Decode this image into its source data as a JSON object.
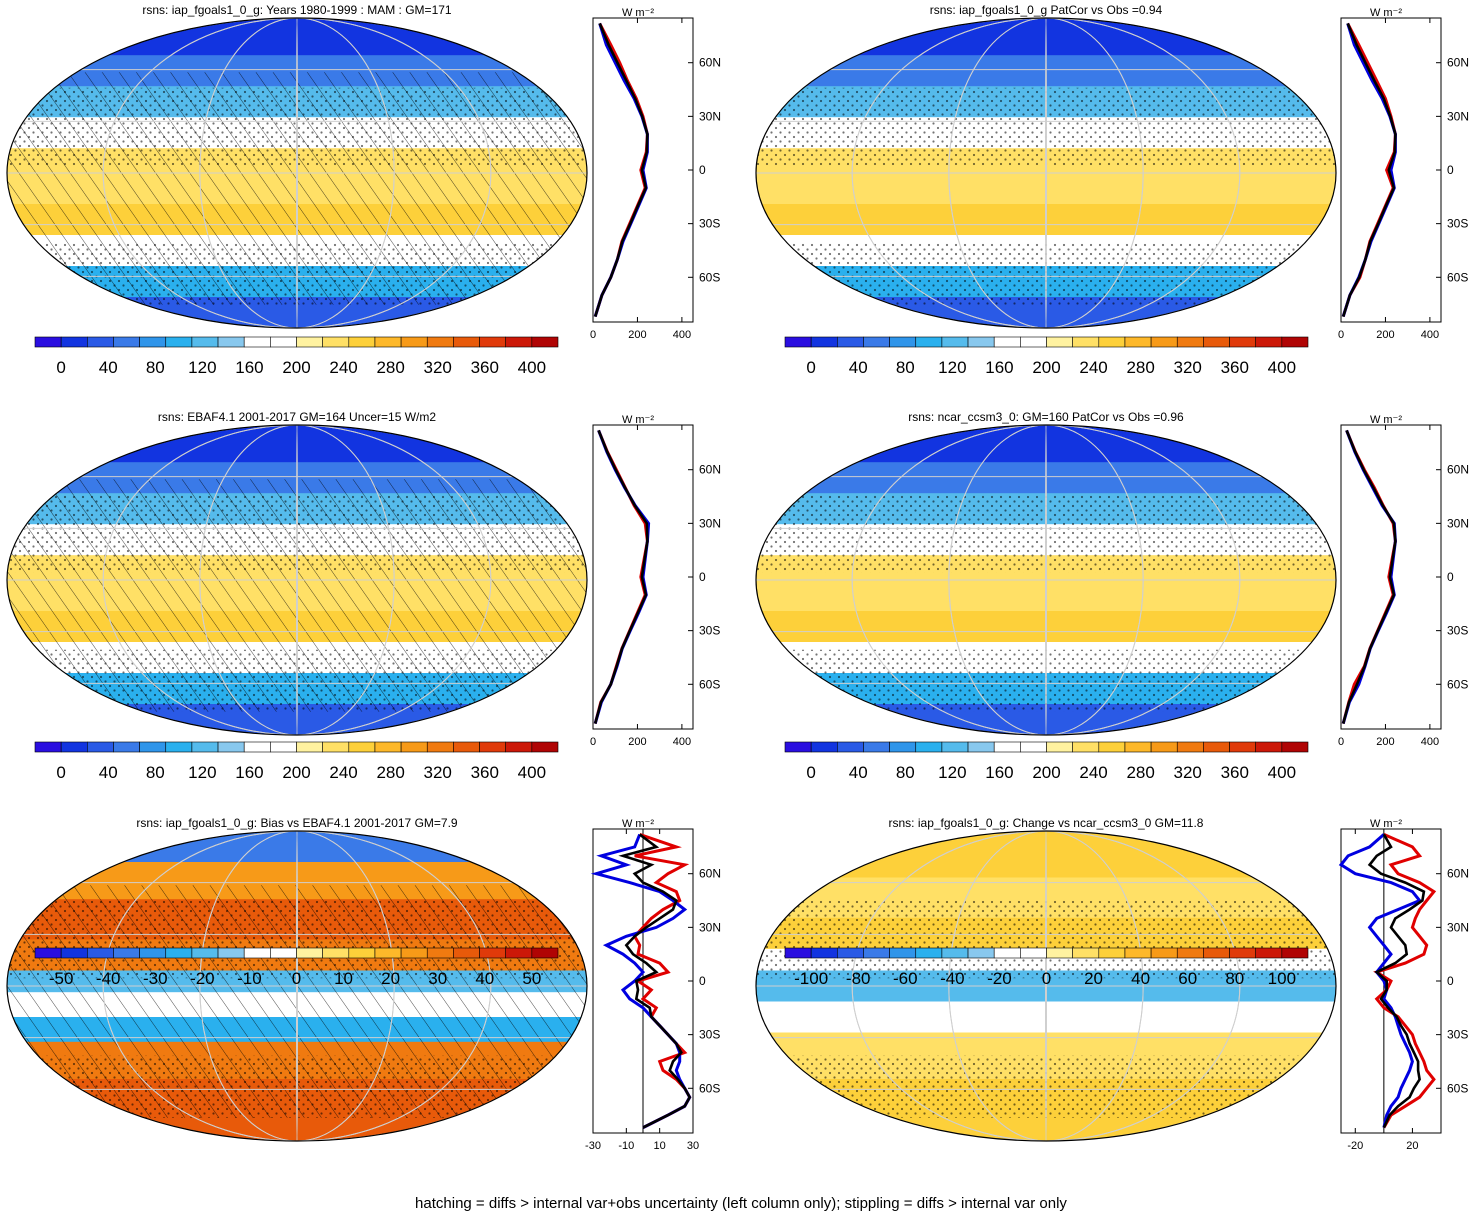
{
  "footer": "hatching = diffs > internal var+obs uncertainty (left column only); stippling = diffs > internal var only",
  "profile_unit": "W m⁻²",
  "colors": {
    "abs_scale": [
      "#2a0ee0",
      "#1234e0",
      "#2a5ae6",
      "#3a7ae8",
      "#2f95ea",
      "#2ab0ee",
      "#55bbec",
      "#88c8ee",
      "#ffffff",
      "#ffffff",
      "#fff2a0",
      "#ffe066",
      "#fdd03a",
      "#fdb82a",
      "#f79a18",
      "#f07a10",
      "#e85a0a",
      "#e03a0a",
      "#cc1808",
      "#b00404"
    ],
    "diff_scale": [
      "#2a0ee0",
      "#1234e0",
      "#2a5ae6",
      "#3a7ae8",
      "#2f95ea",
      "#2ab0ee",
      "#55bbec",
      "#88c8ee",
      "#ffffff",
      "#ffffff",
      "#fff2a0",
      "#ffe066",
      "#fdd03a",
      "#fdb82a",
      "#f79a18",
      "#f07a10",
      "#e85a0a",
      "#e03a0a",
      "#cc1808",
      "#b00404"
    ],
    "profile_model": "#e00000",
    "profile_obs": "#0000e0",
    "profile_black": "#000000"
  },
  "chart_data": [
    {
      "id": "p1",
      "type": "heatmap",
      "title": "rsns: iap_fgoals1_0_g: Years 1980-1999 : MAM : GM=171",
      "colorbar": {
        "labels": [
          "0",
          "40",
          "80",
          "120",
          "160",
          "200",
          "240",
          "280",
          "320",
          "360",
          "400"
        ]
      },
      "profile": {
        "xticks": [
          "0",
          "200",
          "400"
        ],
        "xlim": [
          0,
          450
        ],
        "lat_labels": [
          "60N",
          "30N",
          "0",
          "30S",
          "60S"
        ],
        "lat": [
          82,
          70,
          60,
          50,
          40,
          30,
          20,
          10,
          0,
          -10,
          -20,
          -30,
          -40,
          -50,
          -60,
          -70,
          -82
        ],
        "series": [
          {
            "color": "red",
            "values": [
              30,
              80,
              120,
              155,
              195,
              225,
              245,
              240,
              215,
              235,
              200,
              165,
              130,
              110,
              80,
              40,
              10
            ]
          },
          {
            "color": "blue",
            "values": [
              30,
              60,
              100,
              140,
              185,
              220,
              245,
              245,
              225,
              240,
              205,
              170,
              135,
              110,
              80,
              40,
              10
            ]
          },
          {
            "color": "black",
            "values": [
              30,
              70,
              110,
              150,
              190,
              222,
              245,
              242,
              220,
              238,
              202,
              168,
              132,
              110,
              80,
              40,
              10
            ]
          }
        ]
      }
    },
    {
      "id": "p2",
      "type": "heatmap",
      "title": "rsns: iap_fgoals1_0_g PatCor vs Obs =0.94",
      "colorbar": {
        "labels": [
          "0",
          "40",
          "80",
          "120",
          "160",
          "200",
          "240",
          "280",
          "320",
          "360",
          "400"
        ]
      },
      "profile": {
        "xticks": [
          "0",
          "200",
          "400"
        ],
        "xlim": [
          0,
          450
        ],
        "lat_labels": [
          "60N",
          "30N",
          "0",
          "30S",
          "60S"
        ],
        "lat": [
          82,
          70,
          60,
          50,
          40,
          30,
          20,
          10,
          0,
          -10,
          -20,
          -30,
          -40,
          -50,
          -60,
          -70,
          -82
        ],
        "series": [
          {
            "color": "red",
            "values": [
              30,
              80,
              120,
              160,
              200,
              225,
              245,
              240,
              205,
              235,
              200,
              165,
              130,
              110,
              85,
              40,
              10
            ]
          },
          {
            "color": "blue",
            "values": [
              30,
              60,
              100,
              140,
              185,
              220,
              245,
              245,
              225,
              240,
              205,
              170,
              135,
              110,
              80,
              40,
              10
            ]
          },
          {
            "color": "black",
            "values": [
              30,
              70,
              110,
              150,
              192,
              222,
              245,
              242,
              215,
              238,
              202,
              168,
              132,
              110,
              82,
              40,
              10
            ]
          }
        ]
      }
    },
    {
      "id": "p3",
      "type": "heatmap",
      "title": "rsns: EBAF4.1 2001-2017 GM=164 Uncer=15 W/m2",
      "colorbar": {
        "labels": [
          "0",
          "40",
          "80",
          "120",
          "160",
          "200",
          "240",
          "280",
          "320",
          "360",
          "400"
        ]
      },
      "profile": {
        "xticks": [
          "0",
          "200",
          "400"
        ],
        "xlim": [
          0,
          450
        ],
        "lat_labels": [
          "60N",
          "30N",
          "0",
          "30S",
          "60S"
        ],
        "lat": [
          82,
          70,
          60,
          50,
          40,
          30,
          20,
          10,
          0,
          -10,
          -20,
          -30,
          -40,
          -50,
          -60,
          -70,
          -82
        ],
        "series": [
          {
            "color": "red",
            "values": [
              25,
              65,
              105,
              145,
              185,
              235,
              245,
              230,
              215,
              235,
              200,
              165,
              130,
              105,
              80,
              35,
              10
            ]
          },
          {
            "color": "blue",
            "values": [
              25,
              62,
              100,
              142,
              190,
              250,
              245,
              235,
              225,
              240,
              205,
              168,
              132,
              108,
              80,
              38,
              10
            ]
          },
          {
            "color": "black",
            "values": [
              25,
              64,
              102,
              144,
              188,
              242,
              245,
              232,
              220,
              238,
              202,
              166,
              131,
              106,
              80,
              36,
              10
            ]
          }
        ]
      }
    },
    {
      "id": "p4",
      "type": "heatmap",
      "title": "rsns: ncar_ccsm3_0: GM=160 PatCor vs Obs =0.96",
      "colorbar": {
        "labels": [
          "0",
          "40",
          "80",
          "120",
          "160",
          "200",
          "240",
          "280",
          "320",
          "360",
          "400"
        ]
      },
      "profile": {
        "xticks": [
          "0",
          "200",
          "400"
        ],
        "xlim": [
          0,
          450
        ],
        "lat_labels": [
          "60N",
          "30N",
          "0",
          "30S",
          "60S"
        ],
        "lat": [
          82,
          70,
          60,
          50,
          40,
          30,
          20,
          10,
          0,
          -10,
          -20,
          -30,
          -40,
          -50,
          -60,
          -70,
          -82
        ],
        "series": [
          {
            "color": "red",
            "values": [
              25,
              65,
              105,
              150,
              190,
              235,
              245,
              230,
              215,
              235,
              200,
              165,
              130,
              105,
              60,
              35,
              10
            ]
          },
          {
            "color": "blue",
            "values": [
              25,
              62,
              100,
              142,
              185,
              240,
              245,
              235,
              225,
              240,
              205,
              168,
              132,
              108,
              80,
              38,
              10
            ]
          },
          {
            "color": "black",
            "values": [
              25,
              64,
              102,
              146,
              188,
              238,
              245,
              232,
              220,
              238,
              202,
              166,
              131,
              106,
              72,
              36,
              10
            ]
          }
        ]
      }
    },
    {
      "id": "p5",
      "type": "heatmap",
      "title": "rsns: iap_fgoals1_0_g: Bias vs EBAF4.1 2001-2017 GM=7.9",
      "colorbar": {
        "labels": [
          "-50",
          "-40",
          "-30",
          "-20",
          "-10",
          "0",
          "10",
          "20",
          "30",
          "40",
          "50"
        ]
      },
      "profile": {
        "xticks": [
          "-30",
          "-10",
          "10",
          "30"
        ],
        "xlim": [
          -30,
          30
        ],
        "lat_labels": [
          "60N",
          "30N",
          "0",
          "30S",
          "60S"
        ],
        "lat": [
          82,
          75,
          70,
          65,
          60,
          55,
          50,
          45,
          40,
          35,
          30,
          25,
          20,
          15,
          10,
          5,
          0,
          -5,
          -10,
          -15,
          -20,
          -25,
          -30,
          -35,
          -40,
          -45,
          -50,
          -55,
          -60,
          -65,
          -70,
          -75,
          -82
        ],
        "series": [
          {
            "color": "red",
            "values": [
              -2,
              20,
              -5,
              25,
              15,
              8,
              20,
              22,
              12,
              5,
              0,
              -5,
              -2,
              -3,
              10,
              15,
              -3,
              5,
              0,
              8,
              5,
              10,
              15,
              20,
              25,
              10,
              12,
              20,
              25,
              28,
              25,
              15,
              0
            ]
          },
          {
            "color": "blue",
            "values": [
              -2,
              -5,
              -25,
              -10,
              -28,
              -8,
              10,
              18,
              25,
              18,
              8,
              -10,
              -22,
              -12,
              -5,
              0,
              -5,
              -12,
              -8,
              0,
              5,
              10,
              15,
              20,
              22,
              22,
              20,
              22,
              25,
              28,
              25,
              15,
              0
            ]
          },
          {
            "color": "black",
            "values": [
              -2,
              8,
              -12,
              5,
              -5,
              0,
              12,
              20,
              18,
              10,
              2,
              -5,
              -10,
              -6,
              2,
              8,
              -4,
              -3,
              -4,
              4,
              5,
              10,
              15,
              20,
              23,
              18,
              16,
              21,
              25,
              28,
              25,
              15,
              0
            ]
          }
        ]
      }
    },
    {
      "id": "p6",
      "type": "heatmap",
      "title": "rsns: iap_fgoals1_0_g: Change vs ncar_ccsm3_0 GM=11.8",
      "colorbar": {
        "labels": [
          "-100",
          "-80",
          "-60",
          "-40",
          "-20",
          "0",
          "20",
          "40",
          "60",
          "80",
          "100"
        ]
      },
      "profile": {
        "xticks": [
          "-20",
          "20"
        ],
        "xlim": [
          -30,
          40
        ],
        "lat_labels": [
          "60N",
          "30N",
          "0",
          "30S",
          "60S"
        ],
        "lat": [
          82,
          75,
          70,
          65,
          60,
          55,
          50,
          45,
          40,
          35,
          30,
          25,
          20,
          15,
          10,
          5,
          0,
          -5,
          -10,
          -15,
          -20,
          -25,
          -30,
          -35,
          -40,
          -45,
          -50,
          -55,
          -60,
          -65,
          -70,
          -75,
          -82
        ],
        "series": [
          {
            "color": "red",
            "values": [
              0,
              20,
              25,
              5,
              10,
              25,
              35,
              30,
              25,
              22,
              20,
              25,
              30,
              28,
              15,
              -5,
              5,
              2,
              -5,
              0,
              10,
              15,
              20,
              22,
              25,
              28,
              30,
              35,
              30,
              25,
              15,
              5,
              0
            ]
          },
          {
            "color": "blue",
            "values": [
              0,
              -10,
              -25,
              -30,
              -20,
              5,
              20,
              25,
              10,
              -5,
              -10,
              -5,
              0,
              5,
              0,
              -5,
              0,
              2,
              0,
              5,
              8,
              10,
              12,
              15,
              18,
              20,
              18,
              15,
              12,
              10,
              5,
              2,
              0
            ]
          },
          {
            "color": "black",
            "values": [
              0,
              5,
              -5,
              -10,
              -2,
              15,
              28,
              27,
              18,
              8,
              5,
              10,
              15,
              16,
              8,
              -5,
              2,
              2,
              -2,
              3,
              9,
              12,
              16,
              18,
              21,
              24,
              24,
              25,
              21,
              18,
              10,
              4,
              0
            ]
          }
        ]
      }
    }
  ]
}
